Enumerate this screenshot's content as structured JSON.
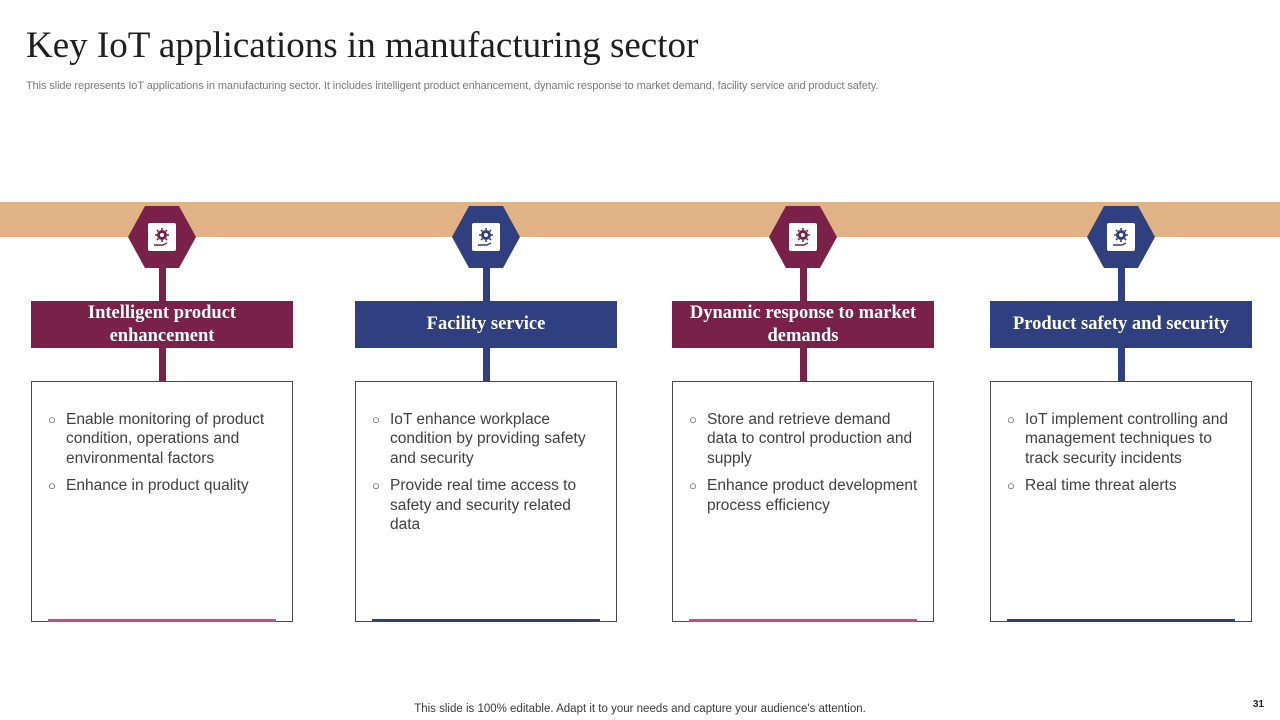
{
  "slide": {
    "title": "Key IoT applications in manufacturing sector",
    "subtitle": "This slide represents IoT applications in manufacturing sector. It includes intelligent product enhancement, dynamic response to market demand, facility service and product safety.",
    "footer": "This slide is 100% editable. Adapt it to your needs and capture your audience's attention.",
    "page_number": "31"
  },
  "colors": {
    "maroon": "#7a2149",
    "navy": "#2f3f7f",
    "band": "#e0b286",
    "pink_accent": "#c0508a"
  },
  "cards": [
    {
      "icon": "gear-hand-icon",
      "heading": "Intelligent product enhancement",
      "bullets": [
        "Enable monitoring of product condition, operations and environmental factors",
        "Enhance in product quality"
      ]
    },
    {
      "icon": "gear-hand-icon",
      "heading": "Facility service",
      "bullets": [
        "IoT enhance workplace condition by providing safety and security",
        "Provide real time access to safety and security related data"
      ]
    },
    {
      "icon": "gear-hand-icon",
      "heading": "Dynamic response to market demands",
      "bullets": [
        "Store and retrieve demand data to control production and supply",
        "Enhance product development process efficiency"
      ]
    },
    {
      "icon": "gear-hand-icon",
      "heading": "Product safety and security",
      "bullets": [
        "IoT implement controlling and management techniques to track security incidents",
        "Real time threat alerts"
      ]
    }
  ]
}
